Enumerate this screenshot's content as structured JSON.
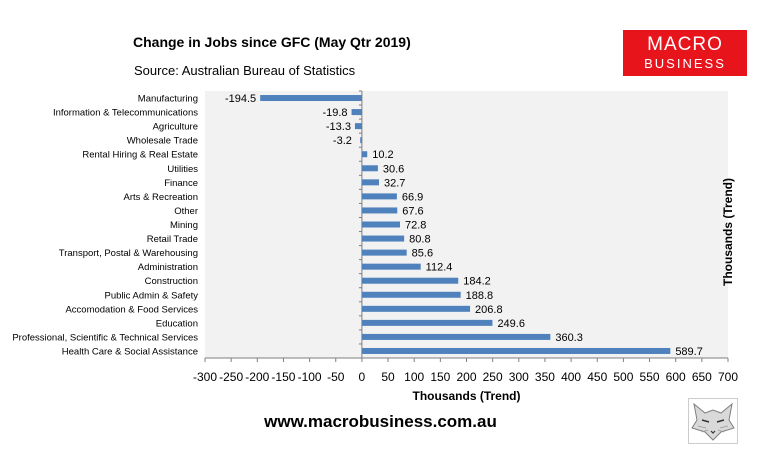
{
  "header": {
    "title": "Change in Jobs since GFC (May Qtr 2019)",
    "subtitle": "Source: Australian Bureau of Statistics"
  },
  "logo": {
    "line1": "MACRO",
    "line2": "BUSINESS"
  },
  "footer": {
    "website": "www.macrobusiness.com.au"
  },
  "colors": {
    "bar": "#4f81bd",
    "plot_bg": "#f2f2f2",
    "logo_bg": "#e8141c"
  },
  "chart_data": {
    "type": "bar",
    "orientation": "horizontal",
    "title": "Change in Jobs since GFC (May Qtr 2019)",
    "subtitle": "Source: Australian Bureau of Statistics",
    "xlabel": "Thousands (Trend)",
    "ylabel": "Thousands (Trend)",
    "xlim": [
      -300,
      700
    ],
    "xticks": [
      "-300",
      "-250",
      "-200",
      "-150",
      "-100",
      "-50",
      "0",
      "50",
      "100",
      "150",
      "200",
      "250",
      "300",
      "350",
      "400",
      "450",
      "500",
      "550",
      "600",
      "650",
      "700"
    ],
    "grid": false,
    "categories": [
      "Manufacturing",
      "Information & Telecommunications",
      "Agriculture",
      "Wholesale Trade",
      "Rental Hiring & Real Estate",
      "Utilities",
      "Finance",
      "Arts & Recreation",
      "Other",
      "Mining",
      "Retail Trade",
      "Transport, Postal & Warehousing",
      "Administration",
      "Construction",
      "Public Admin & Safety",
      "Accomodation & Food Services",
      "Education",
      "Professional, Scientific & Technical Services",
      "Health Care & Social Assistance"
    ],
    "values": [
      -194.5,
      -19.8,
      -13.3,
      -3.2,
      10.2,
      30.6,
      32.7,
      66.9,
      67.6,
      72.8,
      80.8,
      85.6,
      112.4,
      184.2,
      188.8,
      206.8,
      249.6,
      360.3,
      589.7
    ],
    "data_labels": [
      "-194.5",
      "-19.8",
      "-13.3",
      "-3.2",
      "10.2",
      "30.6",
      "32.7",
      "66.9",
      "67.6",
      "72.8",
      "80.8",
      "85.6",
      "112.4",
      "184.2",
      "188.8",
      "206.8",
      "249.6",
      "360.3",
      "589.7"
    ]
  }
}
